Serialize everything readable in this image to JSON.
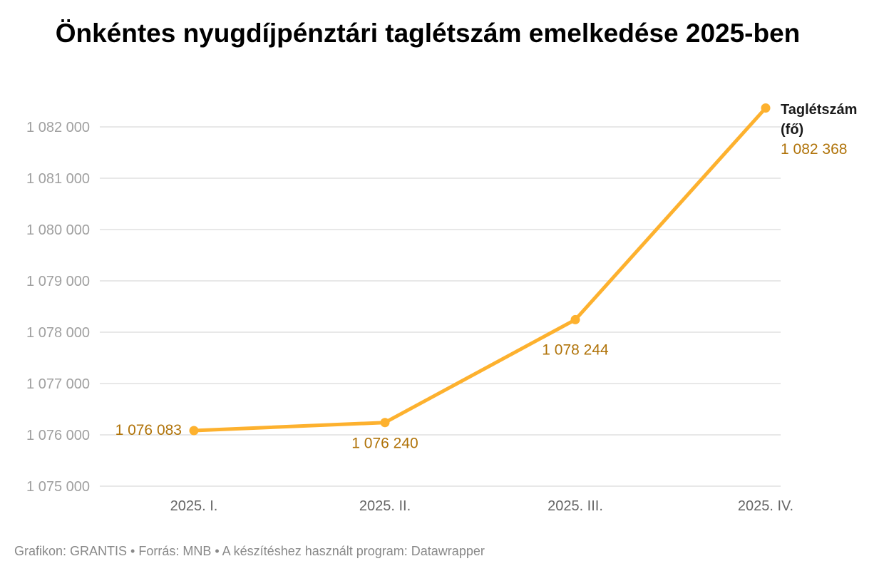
{
  "chart_data": {
    "type": "line",
    "title": "Önkéntes nyugdíjpénztári taglétszám emelkedése 2025-ben",
    "categories": [
      "2025. I.",
      "2025. II.",
      "2025. III.",
      "2025. IV."
    ],
    "series": [
      {
        "name": "Taglétszám (fő)",
        "values": [
          1076083,
          1076240,
          1078244,
          1082368
        ]
      }
    ],
    "data_labels": [
      "1 076 083",
      "1 076 240",
      "1 078 244",
      "1 082 368"
    ],
    "ylim": [
      1075000,
      1082000
    ],
    "yticks": [
      1075000,
      1076000,
      1077000,
      1078000,
      1079000,
      1080000,
      1081000,
      1082000
    ],
    "ytick_labels": [
      "1 075 000",
      "1 076 000",
      "1 077 000",
      "1 078 000",
      "1 079 000",
      "1 080 000",
      "1 081 000",
      "1 082 000"
    ],
    "grid": true,
    "legend": "inline label at end of line",
    "colors": {
      "line": "#fdb12e",
      "label": "#b07309",
      "grid": "#e0e0e0",
      "tick": "#a0a0a0",
      "xtick": "#666666"
    }
  },
  "footer": "Grafikon: GRANTIS • Forrás: MNB • A készítéshez használt program: Datawrapper"
}
